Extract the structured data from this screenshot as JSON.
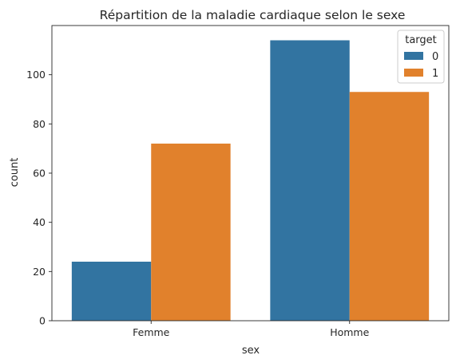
{
  "chart_data": {
    "type": "bar",
    "title": "Répartition de la maladie cardiaque selon le sexe",
    "xlabel": "sex",
    "ylabel": "count",
    "categories": [
      "Femme",
      "Homme"
    ],
    "series": [
      {
        "name": "0",
        "values": [
          24,
          114
        ],
        "color": "#3274a1"
      },
      {
        "name": "1",
        "values": [
          72,
          93
        ],
        "color": "#e1812c"
      }
    ],
    "ylim": [
      0,
      120
    ],
    "yticks": [
      0,
      20,
      40,
      60,
      80,
      100
    ],
    "grid": false,
    "legend": {
      "title": "target",
      "placement": "top-right"
    }
  }
}
